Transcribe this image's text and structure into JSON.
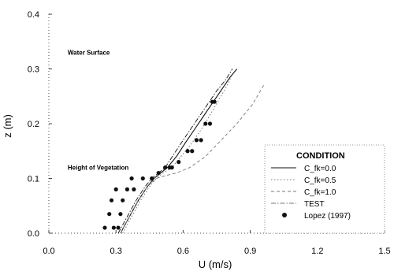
{
  "chart_data": {
    "type": "line",
    "title": "",
    "xlabel": "U (m/s)",
    "ylabel": "z (m)",
    "xlim": [
      0.0,
      1.5
    ],
    "ylim": [
      0.0,
      0.4
    ],
    "x_ticks": [
      "0.0",
      "0.3",
      "0.6",
      "0.9",
      "1.2",
      "1.5"
    ],
    "y_ticks": [
      "0.0",
      "0.1",
      "0.2",
      "0.3",
      "0.4"
    ],
    "grid": false,
    "annotations": [
      {
        "text": "Water Surface",
        "x": 0.07,
        "y": 0.33
      },
      {
        "text": "Height of Vegetation",
        "x": 0.07,
        "y": 0.12
      }
    ],
    "legend": {
      "title": "CONDITION",
      "placement": "bottom-right",
      "entries": [
        "C_fk=0.0",
        "C_fk=0.5",
        "C_fk=1.0",
        "TEST",
        "Lopez (1997)"
      ]
    },
    "series": [
      {
        "name": "C_fk=0.0",
        "style": "solid",
        "x": [
          0.32,
          0.36,
          0.4,
          0.44,
          0.47,
          0.5,
          0.53,
          0.57,
          0.61,
          0.66,
          0.71,
          0.76,
          0.81,
          0.84
        ],
        "y": [
          0.0,
          0.03,
          0.06,
          0.085,
          0.1,
          0.11,
          0.12,
          0.14,
          0.165,
          0.195,
          0.225,
          0.255,
          0.285,
          0.3
        ]
      },
      {
        "name": "C_fk=0.5",
        "style": "dotted",
        "x": [
          0.33,
          0.37,
          0.41,
          0.45,
          0.48,
          0.51,
          0.55,
          0.59,
          0.64,
          0.69,
          0.74,
          0.79,
          0.82
        ],
        "y": [
          0.0,
          0.03,
          0.06,
          0.085,
          0.1,
          0.11,
          0.12,
          0.14,
          0.165,
          0.195,
          0.23,
          0.265,
          0.29
        ]
      },
      {
        "name": "C_fk=1.0",
        "style": "dashed",
        "x": [
          0.32,
          0.36,
          0.4,
          0.44,
          0.48,
          0.52,
          0.57,
          0.63,
          0.7,
          0.77,
          0.84,
          0.91,
          0.96
        ],
        "y": [
          0.0,
          0.03,
          0.06,
          0.085,
          0.1,
          0.105,
          0.11,
          0.12,
          0.14,
          0.17,
          0.2,
          0.235,
          0.27
        ]
      },
      {
        "name": "TEST",
        "style": "dashdot",
        "x": [
          0.31,
          0.35,
          0.39,
          0.43,
          0.46,
          0.49,
          0.52,
          0.56,
          0.6,
          0.65,
          0.7,
          0.75,
          0.79,
          0.82
        ],
        "y": [
          0.0,
          0.03,
          0.06,
          0.085,
          0.1,
          0.11,
          0.12,
          0.145,
          0.17,
          0.2,
          0.23,
          0.26,
          0.28,
          0.3
        ]
      },
      {
        "name": "Lopez (1997)",
        "style": "markers",
        "x": [
          0.25,
          0.29,
          0.31,
          0.27,
          0.32,
          0.28,
          0.33,
          0.3,
          0.35,
          0.38,
          0.37,
          0.42,
          0.46,
          0.49,
          0.52,
          0.54,
          0.55,
          0.58,
          0.62,
          0.64,
          0.66,
          0.68,
          0.7,
          0.72,
          0.73,
          0.74
        ],
        "y": [
          0.01,
          0.01,
          0.01,
          0.035,
          0.035,
          0.06,
          0.06,
          0.08,
          0.08,
          0.08,
          0.1,
          0.1,
          0.1,
          0.11,
          0.12,
          0.12,
          0.12,
          0.13,
          0.15,
          0.15,
          0.17,
          0.17,
          0.2,
          0.2,
          0.24,
          0.24
        ]
      }
    ]
  }
}
